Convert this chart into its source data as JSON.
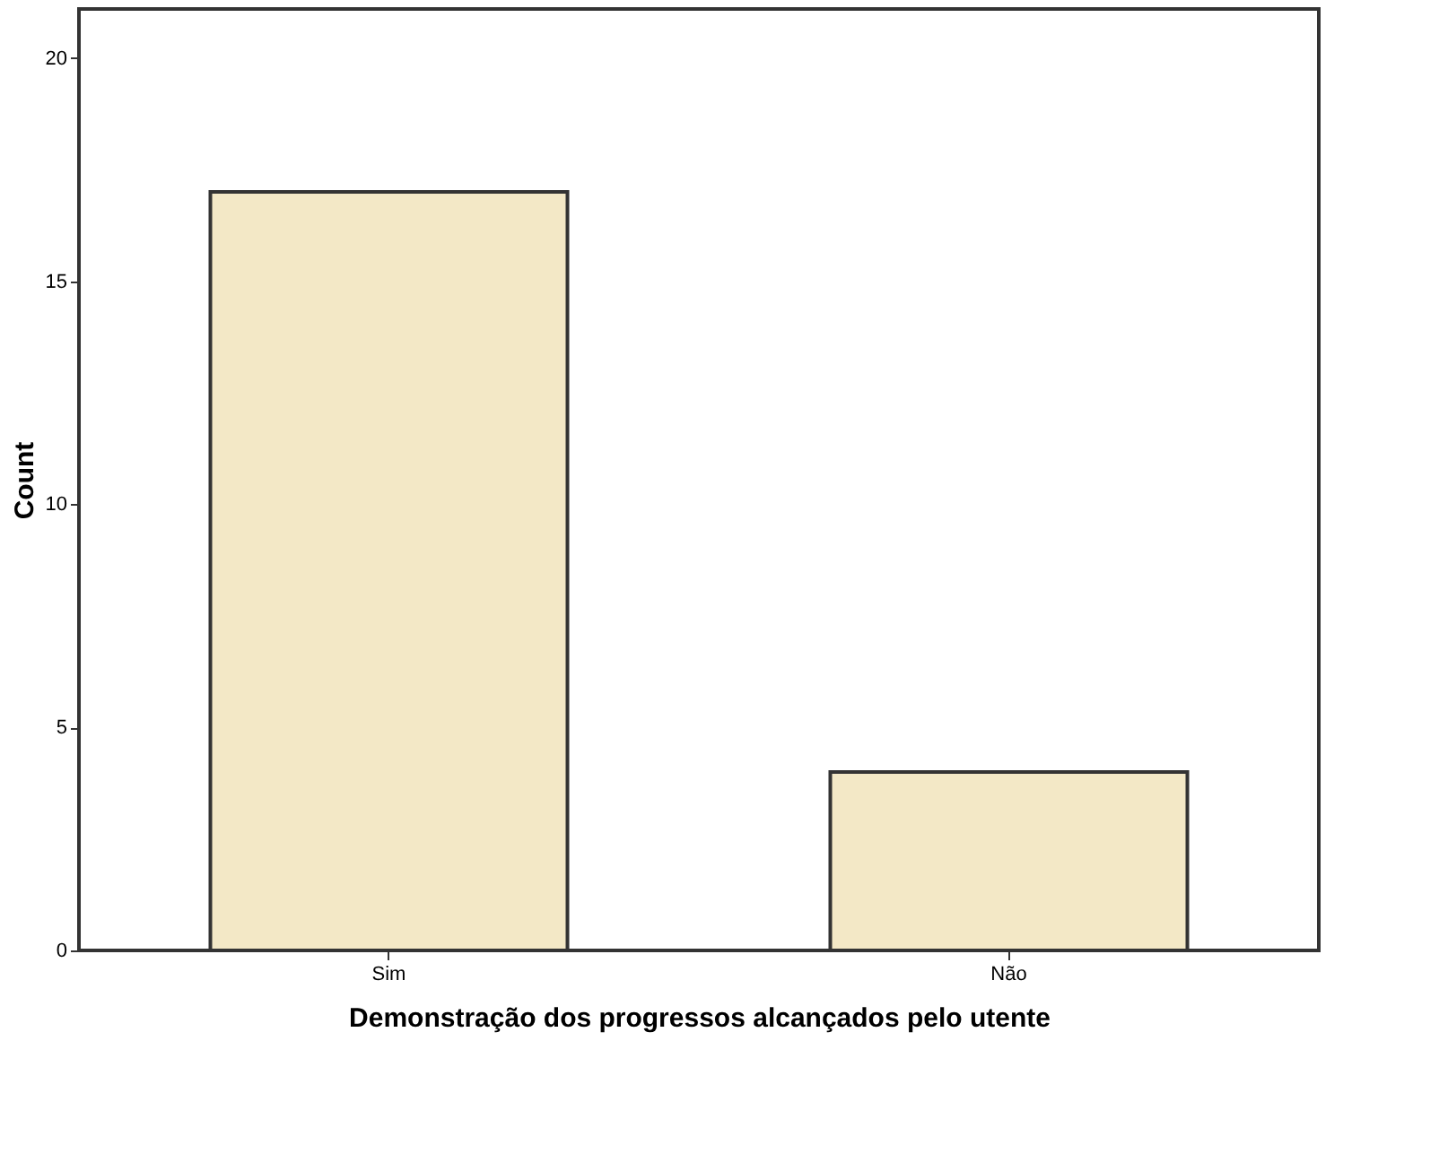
{
  "chart_data": {
    "type": "bar",
    "xlabel": "Demonstração dos progressos alcançados pelo utente",
    "ylabel": "Count",
    "categories": [
      "Sim",
      "Não"
    ],
    "values": [
      17,
      4
    ],
    "color": "#f3e8c6",
    "ylim": [
      0,
      21.1
    ],
    "yticks": [
      0,
      5,
      10,
      15,
      20
    ],
    "grid": false
  }
}
